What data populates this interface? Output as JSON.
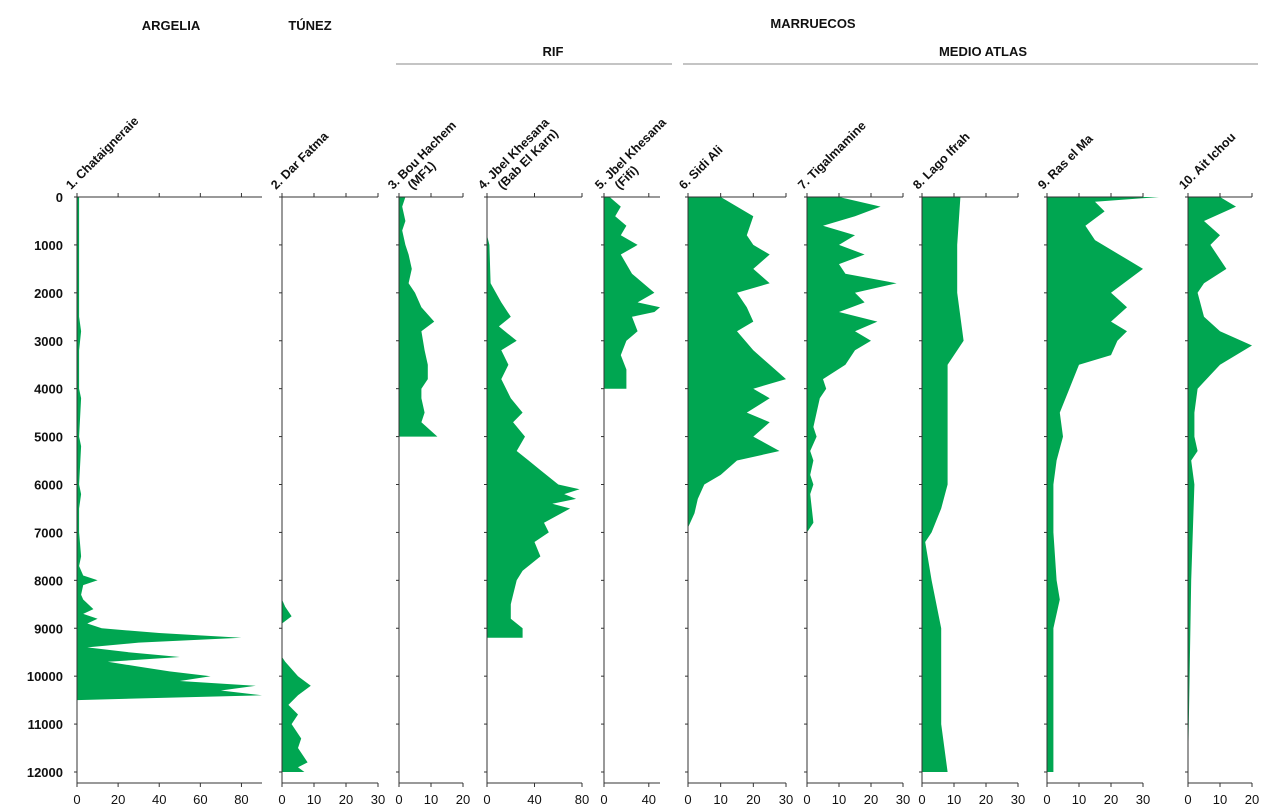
{
  "chart_data": {
    "type": "area",
    "headers": [
      "ARGELIA",
      "TÚNEZ",
      "MARRUECOS"
    ],
    "subheaders": [
      "RIF",
      "MEDIO ATLAS"
    ],
    "y_ticks": [
      "0",
      "1000",
      "2000",
      "3000",
      "4000",
      "5000",
      "6000",
      "7000",
      "8000",
      "9000",
      "10000",
      "11000",
      "12000"
    ],
    "ylim": [
      0,
      12000
    ],
    "fill_color": "#00a651",
    "panels": [
      {
        "name": "1. Chataigneraie",
        "xlim": [
          0,
          90
        ],
        "ticks": [
          "0",
          "20",
          "40",
          "60",
          "80"
        ],
        "tick_vals": [
          0,
          20,
          40,
          60,
          80
        ],
        "y": [
          0,
          200,
          800,
          1500,
          2500,
          2800,
          3200,
          4000,
          4200,
          5000,
          5200,
          6000,
          6200,
          6500,
          7000,
          7500,
          7700,
          7900,
          8000,
          8100,
          8300,
          8400,
          8600,
          8700,
          8800,
          8900,
          9000,
          9100,
          9200,
          9300,
          9400,
          9500,
          9600,
          9700,
          9800,
          9900,
          10000,
          10100,
          10200,
          10300,
          10400,
          10500
        ],
        "x": [
          1,
          1,
          1,
          1,
          1,
          2,
          1,
          1,
          2,
          1,
          2,
          1,
          2,
          1,
          1,
          2,
          1,
          3,
          10,
          3,
          2,
          3,
          8,
          3,
          10,
          5,
          12,
          40,
          80,
          30,
          5,
          25,
          50,
          15,
          30,
          45,
          65,
          50,
          87,
          70,
          90,
          0
        ]
      },
      {
        "name": "2. Dar Fatma",
        "xlim": [
          0,
          30
        ],
        "ticks": [
          "0",
          "10",
          "20",
          "30"
        ],
        "tick_vals": [
          0,
          10,
          20,
          30
        ],
        "y": [
          0,
          8400,
          8550,
          8750,
          8900,
          9600,
          9700,
          10000,
          10200,
          10400,
          10600,
          10800,
          11000,
          11300,
          11500,
          11800,
          11900,
          12000
        ],
        "x": [
          0,
          0,
          1,
          3,
          0,
          0,
          1,
          5,
          9,
          5,
          2,
          5,
          3,
          6,
          5,
          8,
          5,
          7
        ]
      },
      {
        "name": "3. Bou Hachem\n(MF1)",
        "xlim": [
          0,
          20
        ],
        "ticks": [
          "0",
          "10",
          "20"
        ],
        "tick_vals": [
          0,
          10,
          20
        ],
        "y": [
          0,
          200,
          500,
          700,
          1000,
          1200,
          1500,
          1800,
          2000,
          2300,
          2600,
          2800,
          3200,
          3500,
          3800,
          4000,
          4200,
          4500,
          4700,
          5000
        ],
        "x": [
          2,
          1,
          2,
          1,
          2,
          3,
          4,
          3,
          5,
          7,
          11,
          7,
          8,
          9,
          9,
          7,
          7,
          8,
          7,
          12
        ]
      },
      {
        "name": "4. Jbel Khesana\n(Bab El Karn)",
        "xlim": [
          0,
          80
        ],
        "ticks": [
          "0",
          "40",
          "80"
        ],
        "tick_vals": [
          0,
          40,
          80
        ],
        "y": [
          0,
          800,
          1000,
          1800,
          2200,
          2500,
          2700,
          3000,
          3200,
          3500,
          3800,
          4200,
          4500,
          4700,
          5000,
          5300,
          5500,
          5700,
          6000,
          6100,
          6200,
          6300,
          6400,
          6500,
          6800,
          7000,
          7200,
          7500,
          7800,
          8000,
          8300,
          8500,
          8800,
          9000,
          9200
        ],
        "x": [
          0,
          0,
          2,
          3,
          12,
          20,
          10,
          25,
          12,
          18,
          12,
          20,
          30,
          22,
          32,
          25,
          35,
          45,
          60,
          78,
          65,
          75,
          55,
          70,
          48,
          52,
          40,
          45,
          30,
          25,
          22,
          20,
          20,
          30,
          30
        ]
      },
      {
        "name": "5. Jbel Khesana\n(Fifi)",
        "xlim": [
          0,
          50
        ],
        "ticks": [
          "0",
          "40"
        ],
        "tick_vals": [
          0,
          40
        ],
        "y": [
          0,
          200,
          400,
          600,
          800,
          1000,
          1200,
          1400,
          1600,
          1800,
          2000,
          2200,
          2300,
          2400,
          2500,
          2800,
          3000,
          3300,
          3600,
          4000
        ],
        "x": [
          5,
          15,
          10,
          20,
          15,
          30,
          15,
          20,
          25,
          35,
          45,
          30,
          50,
          45,
          25,
          30,
          20,
          15,
          20,
          20
        ]
      },
      {
        "name": "6. Sidi Ali",
        "xlim": [
          0,
          30
        ],
        "ticks": [
          "0",
          "10",
          "20",
          "30"
        ],
        "tick_vals": [
          0,
          10,
          20,
          30
        ],
        "y": [
          0,
          200,
          400,
          800,
          1000,
          1200,
          1500,
          1800,
          2000,
          2300,
          2600,
          2800,
          3200,
          3500,
          3800,
          4000,
          4200,
          4500,
          4700,
          5000,
          5300,
          5500,
          5800,
          6000,
          6300,
          6600,
          6900
        ],
        "x": [
          10,
          15,
          20,
          18,
          20,
          25,
          20,
          25,
          15,
          18,
          20,
          15,
          20,
          25,
          30,
          20,
          25,
          18,
          25,
          20,
          28,
          15,
          10,
          5,
          3,
          2,
          0
        ]
      },
      {
        "name": "7. Tigalmamine",
        "xlim": [
          0,
          30
        ],
        "ticks": [
          "0",
          "10",
          "20",
          "30"
        ],
        "tick_vals": [
          0,
          10,
          20,
          30
        ],
        "y": [
          0,
          200,
          400,
          600,
          800,
          1000,
          1200,
          1400,
          1600,
          1800,
          2000,
          2200,
          2400,
          2600,
          2800,
          3000,
          3200,
          3500,
          3800,
          4000,
          4200,
          4500,
          4800,
          5000,
          5300,
          5500,
          5800,
          6000,
          6200,
          6800,
          7000,
          10500
        ],
        "x": [
          10,
          23,
          15,
          5,
          15,
          10,
          18,
          10,
          12,
          28,
          15,
          18,
          10,
          22,
          15,
          20,
          15,
          12,
          5,
          6,
          4,
          3,
          2,
          3,
          1,
          2,
          1,
          2,
          1,
          2,
          0,
          0
        ]
      },
      {
        "name": "8. Lago Ifrah",
        "xlim": [
          0,
          30
        ],
        "ticks": [
          "0",
          "10",
          "20",
          "30"
        ],
        "tick_vals": [
          0,
          10,
          20,
          30
        ],
        "y": [
          0,
          1000,
          2000,
          3000,
          3500,
          4000,
          5000,
          6000,
          6500,
          7000,
          7200,
          8000,
          9000,
          10000,
          11000,
          12000
        ],
        "x": [
          12,
          11,
          11,
          13,
          8,
          8,
          8,
          8,
          6,
          3,
          1,
          3,
          6,
          6,
          6,
          8
        ]
      },
      {
        "name": "9. Ras el Ma",
        "xlim": [
          0,
          30
        ],
        "ticks": [
          "0",
          "10",
          "20",
          "30"
        ],
        "tick_vals": [
          0,
          10,
          20,
          30
        ],
        "y": [
          0,
          100,
          300,
          600,
          900,
          1300,
          1500,
          2000,
          2300,
          2600,
          2800,
          3000,
          3300,
          3500,
          4000,
          4500,
          5000,
          5500,
          6000,
          7000,
          8000,
          8400,
          9000,
          10000,
          11000,
          12000
        ],
        "x": [
          35,
          15,
          18,
          12,
          15,
          25,
          30,
          20,
          25,
          20,
          25,
          22,
          20,
          10,
          7,
          4,
          5,
          3,
          2,
          2,
          3,
          4,
          2,
          2,
          2,
          2
        ]
      },
      {
        "name": "10. Ait Ichou",
        "xlim": [
          0,
          20
        ],
        "ticks": [
          "0",
          "10",
          "20"
        ],
        "tick_vals": [
          0,
          10,
          20
        ],
        "y": [
          0,
          200,
          500,
          800,
          1000,
          1500,
          1800,
          2000,
          2500,
          2800,
          3100,
          3500,
          4000,
          4500,
          5000,
          5300,
          5500,
          6000,
          8000,
          12000
        ],
        "x": [
          10,
          15,
          5,
          10,
          7,
          12,
          5,
          3,
          5,
          10,
          20,
          10,
          3,
          2,
          2,
          3,
          1,
          2,
          1,
          0
        ]
      }
    ]
  }
}
